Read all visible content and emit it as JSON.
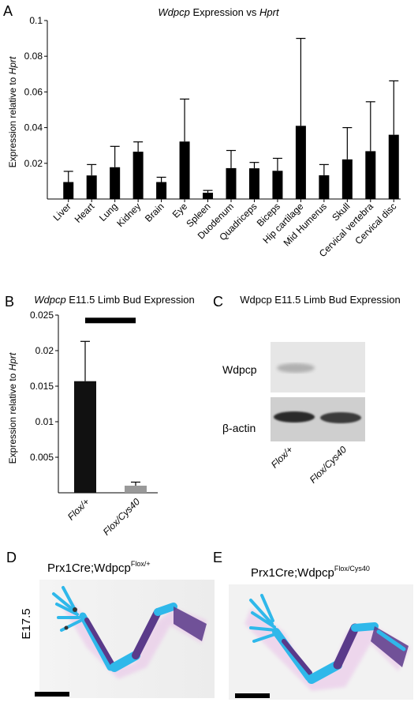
{
  "panels": {
    "a": "A",
    "b": "B",
    "c": "C",
    "d": "D",
    "e": "E"
  },
  "chart_data": [
    {
      "type": "bar",
      "title_italic": "Wdpcp",
      "title_rest": " Expression vs ",
      "title_italic2": "Hprt",
      "ylabel_plain": "Expression relative to ",
      "ylabel_italic": "Hprt",
      "ylim": [
        0,
        0.1
      ],
      "yticks": [
        "0.02",
        "0.04",
        "0.06",
        "0.08",
        "0.1"
      ],
      "ytick_values": [
        0.02,
        0.04,
        0.06,
        0.08,
        0.1
      ],
      "categories": [
        "Liver",
        "Heart",
        "Lung",
        "Kidney",
        "Brain",
        "Eye",
        "Spleen",
        "Duodenum",
        "Quadriceps",
        "Biceps",
        "Hip cartilage",
        "Mid Humerus",
        "Skull",
        "Cervical vertebra",
        "Cervical disc"
      ],
      "values": [
        0.0095,
        0.0132,
        0.0178,
        0.0265,
        0.0095,
        0.0322,
        0.0035,
        0.0173,
        0.0172,
        0.0158,
        0.041,
        0.0133,
        0.0222,
        0.0268,
        0.036
      ],
      "error_upper": [
        0.0155,
        0.0193,
        0.0295,
        0.032,
        0.0122,
        0.056,
        0.0048,
        0.0272,
        0.0205,
        0.0228,
        0.09,
        0.0193,
        0.04,
        0.0545,
        0.0662
      ],
      "grid": false,
      "color": "#000000"
    },
    {
      "type": "bar",
      "title_italic": "Wdpcp",
      "title_rest": " E11.5 Limb Bud Expression",
      "ylabel_plain": "Expression relative to ",
      "ylabel_italic": "Hprt",
      "ylim": [
        0,
        0.025
      ],
      "yticks": [
        "0.005",
        "0.01",
        "0.015",
        "0.02",
        "0.025"
      ],
      "ytick_values": [
        0.005,
        0.01,
        0.015,
        0.02,
        0.025
      ],
      "categories": [
        "Flox/+",
        "Flox/Cys40"
      ],
      "values": [
        0.0157,
        0.001
      ],
      "error_upper": [
        0.0213,
        0.0015
      ],
      "bar_colors": [
        "#111111",
        "#999999"
      ],
      "grid": false
    }
  ],
  "blot": {
    "title": "Wdpcp E11.5 Limb Bud Expression",
    "row1_label": "Wdpcp",
    "row2_label": "β-actin",
    "lanes": [
      "Flox/+",
      "Flox/Cys40"
    ]
  },
  "skeleton": {
    "d_label_main": "Prx1Cre;Wdpcp",
    "d_label_sup": "Flox/+",
    "e_label_main": "Prx1Cre;Wdpcp",
    "e_label_sup": "Flox/Cys40",
    "stage": "E17.5",
    "colors": {
      "cartilage": "#2fb8ea",
      "bone": "#5a3a8a",
      "tissue": "#e7b6e6"
    }
  }
}
